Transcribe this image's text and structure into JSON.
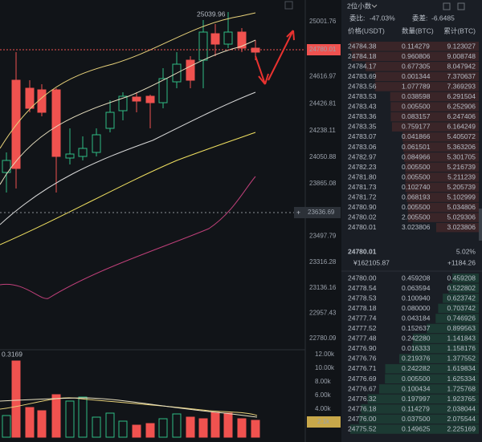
{
  "chart": {
    "high_label": "25039.96",
    "indicator_label": "0.3169",
    "price_axis": [
      "25001.76",
      "24616.97",
      "24426.81",
      "24238.11",
      "24050.88",
      "23865.08",
      "23680.73",
      "23497.79",
      "23316.28",
      "23136.16",
      "22957.43",
      "22780.09"
    ],
    "current_price_label": "24780.01",
    "crosshair_label": "23636.69",
    "volume_axis": [
      "12.00k",
      "10.00k",
      "8.00k",
      "6.00k",
      "4.00k"
    ],
    "volume_current_label": "2.1k"
  },
  "order_book": {
    "precision": "2位小数",
    "ratio_label": "委比:",
    "ratio": "-47.03%",
    "diff_label": "委差:",
    "diff": "-6.6485",
    "headers": [
      "价格(USDT)",
      "数量(BTC)",
      "累计(BTC)"
    ],
    "asks": [
      [
        "24784.38",
        "0.114279",
        "9.123027"
      ],
      [
        "24784.18",
        "0.960806",
        "9.008748"
      ],
      [
        "24784.17",
        "0.677305",
        "8.047942"
      ],
      [
        "24783.69",
        "0.001344",
        "7.370637"
      ],
      [
        "24783.56",
        "1.077789",
        "7.369293"
      ],
      [
        "24783.53",
        "0.038598",
        "6.291504"
      ],
      [
        "24783.43",
        "0.005500",
        "6.252906"
      ],
      [
        "24783.36",
        "0.083157",
        "6.247406"
      ],
      [
        "24783.35",
        "0.759177",
        "6.164249"
      ],
      [
        "24783.07",
        "0.041866",
        "5.405072"
      ],
      [
        "24783.06",
        "0.061501",
        "5.363206"
      ],
      [
        "24782.97",
        "0.084966",
        "5.301705"
      ],
      [
        "24782.23",
        "0.005500",
        "5.216739"
      ],
      [
        "24781.80",
        "0.005500",
        "5.211239"
      ],
      [
        "24781.73",
        "0.102740",
        "5.205739"
      ],
      [
        "24781.72",
        "0.068193",
        "5.102999"
      ],
      [
        "24780.90",
        "0.005500",
        "5.034806"
      ],
      [
        "24780.02",
        "2.005500",
        "5.029306"
      ],
      [
        "24780.01",
        "3.023806",
        "3.023806"
      ]
    ],
    "last_price": "24780.01",
    "change": "5.02%",
    "cny": "¥162105.87",
    "change_amount": "+1184.26",
    "bids": [
      [
        "24780.00",
        "0.459208",
        "0.459208"
      ],
      [
        "24778.54",
        "0.063594",
        "0.522802"
      ],
      [
        "24778.53",
        "0.100940",
        "0.623742"
      ],
      [
        "24778.18",
        "0.080000",
        "0.703742"
      ],
      [
        "24777.74",
        "0.043184",
        "0.746926"
      ],
      [
        "24777.52",
        "0.152637",
        "0.899563"
      ],
      [
        "24777.48",
        "0.242280",
        "1.141843"
      ],
      [
        "24776.90",
        "0.016333",
        "1.158176"
      ],
      [
        "24776.76",
        "0.219376",
        "1.377552"
      ],
      [
        "24776.71",
        "0.242282",
        "1.619834"
      ],
      [
        "24776.69",
        "0.005500",
        "1.625334"
      ],
      [
        "24776.67",
        "0.100434",
        "1.725768"
      ],
      [
        "24776.32",
        "0.197997",
        "1.923765"
      ],
      [
        "24776.18",
        "0.114279",
        "2.038044"
      ],
      [
        "24776.00",
        "0.037500",
        "2.075544"
      ],
      [
        "24775.52",
        "0.149625",
        "2.225169"
      ]
    ]
  }
}
